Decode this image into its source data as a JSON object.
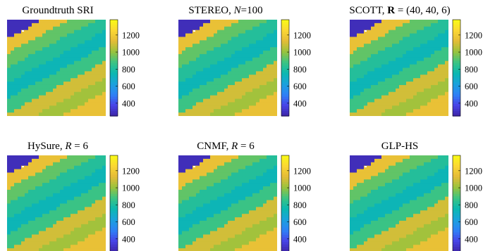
{
  "chart_data": [
    {
      "type": "heatmap",
      "title": "Groundtruth SRI",
      "colorbar": {
        "min": 250,
        "max": 1380,
        "ticks": [
          400,
          600,
          800,
          1000,
          1200
        ],
        "tick_labels": [
          "400",
          "600",
          "800",
          "1000",
          "1200"
        ]
      }
    },
    {
      "type": "heatmap",
      "title": "STEREO, N=100",
      "colorbar": {
        "min": 250,
        "max": 1380,
        "ticks": [
          400,
          600,
          800,
          1000,
          1200
        ],
        "tick_labels": [
          "400",
          "600",
          "800",
          "1000",
          "1200"
        ]
      }
    },
    {
      "type": "heatmap",
      "title": "SCOTT, R = (40, 40, 6)",
      "colorbar": {
        "min": 250,
        "max": 1380,
        "ticks": [
          400,
          600,
          800,
          1000,
          1200
        ],
        "tick_labels": [
          "400",
          "600",
          "800",
          "1000",
          "1200"
        ]
      }
    },
    {
      "type": "heatmap",
      "title": "HySure, R = 6",
      "colorbar": {
        "min": 250,
        "max": 1380,
        "ticks": [
          400,
          600,
          800,
          1000,
          1200
        ],
        "tick_labels": [
          "400",
          "600",
          "800",
          "1000",
          "1200"
        ]
      }
    },
    {
      "type": "heatmap",
      "title": "CNMF, R = 6",
      "colorbar": {
        "min": 250,
        "max": 1380,
        "ticks": [
          400,
          600,
          800,
          1000,
          1200
        ],
        "tick_labels": [
          "400",
          "600",
          "800",
          "1000",
          "1200"
        ]
      }
    },
    {
      "type": "heatmap",
      "title": "GLP-HS",
      "colorbar": {
        "min": 250,
        "max": 1380,
        "ticks": [
          400,
          600,
          800,
          1000,
          1200
        ],
        "tick_labels": [
          "400",
          "600",
          "800",
          "1000",
          "1200"
        ]
      }
    }
  ],
  "title_parts": [
    [
      {
        "text": "Groundtruth SRI",
        "style": "normal"
      }
    ],
    [
      {
        "text": "STEREO, ",
        "style": "normal"
      },
      {
        "text": "N",
        "style": "italic"
      },
      {
        "text": "=100",
        "style": "normal"
      }
    ],
    [
      {
        "text": "SCOTT, ",
        "style": "normal"
      },
      {
        "text": "R",
        "style": "bold"
      },
      {
        "text": " = (40, 40, 6)",
        "style": "normal"
      }
    ],
    [
      {
        "text": "HySure, ",
        "style": "normal"
      },
      {
        "text": "R",
        "style": "italic"
      },
      {
        "text": " = 6",
        "style": "normal"
      }
    ],
    [
      {
        "text": "CNMF, ",
        "style": "normal"
      },
      {
        "text": "R",
        "style": "italic"
      },
      {
        "text": " = 6",
        "style": "normal"
      }
    ],
    [
      {
        "text": "GLP-HS",
        "style": "normal"
      }
    ]
  ],
  "colormap": [
    "#3e26a8",
    "#4744e8",
    "#2e82f6",
    "#1aa2dc",
    "#0bb8b0",
    "#3cc483",
    "#99c33d",
    "#e4bc37",
    "#fbd733",
    "#f9fb15"
  ]
}
